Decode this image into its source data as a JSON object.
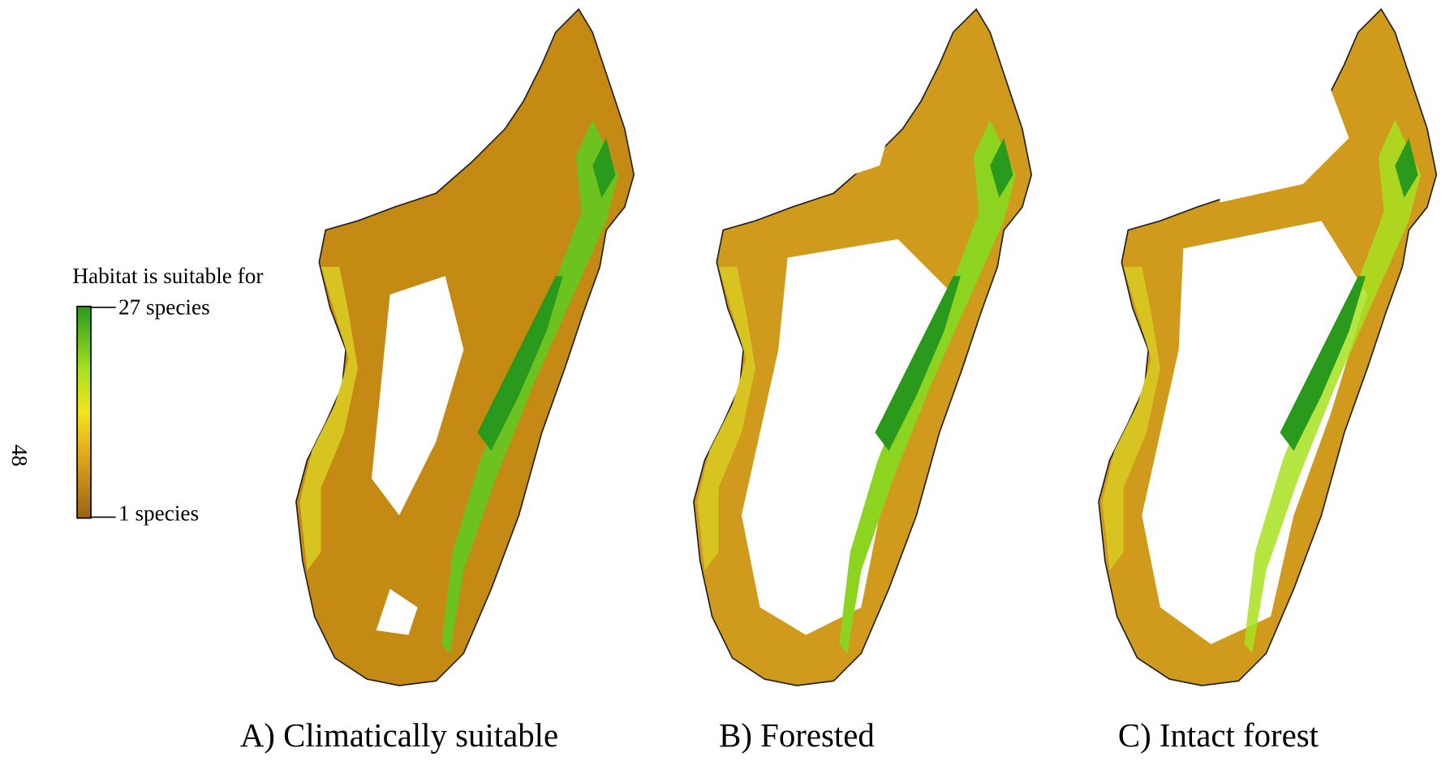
{
  "legend": {
    "title": "Habitat is suitable for",
    "max_label": "27 species",
    "min_label": "1 species"
  },
  "page_number": "48",
  "panels": [
    {
      "caption": "A) Climatically suitable"
    },
    {
      "caption": "B) Forested"
    },
    {
      "caption": "C) Intact forest"
    }
  ]
}
